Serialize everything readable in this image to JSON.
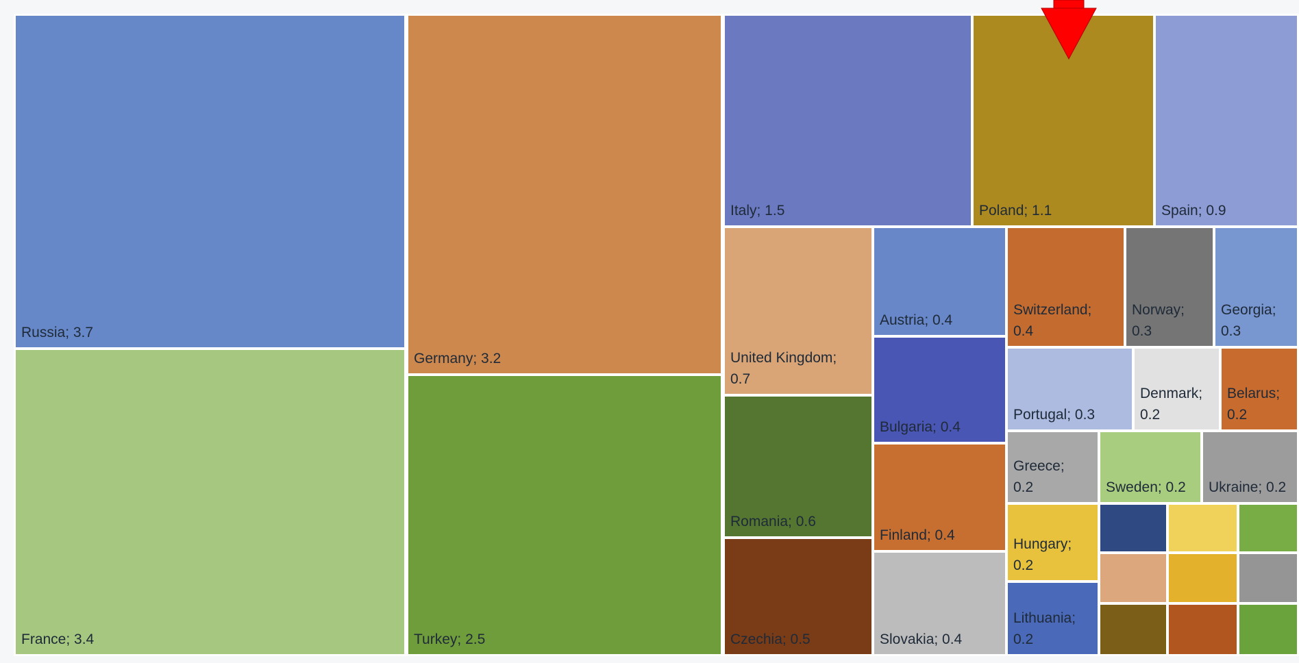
{
  "chart_data": {
    "type": "treemap",
    "values_unit": "",
    "items": [
      {
        "label": "Russia",
        "value": 3.7,
        "display": "Russia; 3.7",
        "color": "#6788c8"
      },
      {
        "label": "France",
        "value": 3.4,
        "display": "France; 3.4",
        "color": "#a5c77f"
      },
      {
        "label": "Germany",
        "value": 3.2,
        "display": "Germany; 3.2",
        "color": "#cd884e"
      },
      {
        "label": "Turkey",
        "value": 2.5,
        "display": "Turkey; 2.5",
        "color": "#709d3b"
      },
      {
        "label": "Italy",
        "value": 1.5,
        "display": "Italy; 1.5",
        "color": "#6b79c1"
      },
      {
        "label": "Poland",
        "value": 1.1,
        "display": "Poland; 1.1",
        "color": "#ad8a20"
      },
      {
        "label": "Spain",
        "value": 0.9,
        "display": "Spain; 0.9",
        "color": "#8e9cd6"
      },
      {
        "label": "United Kingdom",
        "value": 0.7,
        "display": "United Kingdom;\n0.7",
        "color": "#d9a577"
      },
      {
        "label": "Romania",
        "value": 0.6,
        "display": "Romania; 0.6",
        "color": "#557630"
      },
      {
        "label": "Czechia",
        "value": 0.5,
        "display": "Czechia; 0.5",
        "color": "#7a3c17"
      },
      {
        "label": "Austria",
        "value": 0.4,
        "display": "Austria; 0.4",
        "color": "#6787c8"
      },
      {
        "label": "Bulgaria",
        "value": 0.4,
        "display": "Bulgaria; 0.4",
        "color": "#4a56b3"
      },
      {
        "label": "Finland",
        "value": 0.4,
        "display": "Finland; 0.4",
        "color": "#c66f31"
      },
      {
        "label": "Slovakia",
        "value": 0.4,
        "display": "Slovakia; 0.4",
        "color": "#bcbcbc"
      },
      {
        "label": "Switzerland",
        "value": 0.4,
        "display": "Switzerland;\n0.4",
        "color": "#c46c30"
      },
      {
        "label": "Norway",
        "value": 0.3,
        "display": "Norway;\n0.3",
        "color": "#757575"
      },
      {
        "label": "Georgia",
        "value": 0.3,
        "display": "Georgia;\n0.3",
        "color": "#7896d0"
      },
      {
        "label": "Portugal",
        "value": 0.3,
        "display": "Portugal; 0.3",
        "color": "#adbbe1"
      },
      {
        "label": "Denmark",
        "value": 0.2,
        "display": "Denmark;\n0.2",
        "color": "#e1e1e1"
      },
      {
        "label": "Belarus",
        "value": 0.2,
        "display": "Belarus;\n0.2",
        "color": "#c86b2e"
      },
      {
        "label": "Greece",
        "value": 0.2,
        "display": "Greece;\n0.2",
        "color": "#a8a8a8"
      },
      {
        "label": "Sweden",
        "value": 0.2,
        "display": "Sweden; 0.2",
        "color": "#a8cd7f"
      },
      {
        "label": "Ukraine",
        "value": 0.2,
        "display": "Ukraine; 0.2",
        "color": "#9c9c9c"
      },
      {
        "label": "Hungary",
        "value": 0.2,
        "display": "Hungary;\n0.2",
        "color": "#e8c23d"
      },
      {
        "label": "Lithuania",
        "value": 0.2,
        "display": "Lithuania;\n0.2",
        "color": "#4a6ab9"
      },
      {
        "label": "",
        "value": null,
        "display": "",
        "color": "#2f4a82"
      },
      {
        "label": "",
        "value": null,
        "display": "",
        "color": "#f0d15a"
      },
      {
        "label": "",
        "value": null,
        "display": "",
        "color": "#78ad45"
      },
      {
        "label": "",
        "value": null,
        "display": "",
        "color": "#dca77d"
      },
      {
        "label": "",
        "value": null,
        "display": "",
        "color": "#e3b12b"
      },
      {
        "label": "",
        "value": null,
        "display": "",
        "color": "#959595"
      },
      {
        "label": "",
        "value": null,
        "display": "",
        "color": "#7b5e17"
      },
      {
        "label": "",
        "value": null,
        "display": "",
        "color": "#b2561f"
      },
      {
        "label": "",
        "value": null,
        "display": "",
        "color": "#6aa33c"
      }
    ],
    "annotation": {
      "type": "arrow",
      "color": "#ff0000",
      "points_to": "Poland"
    }
  }
}
